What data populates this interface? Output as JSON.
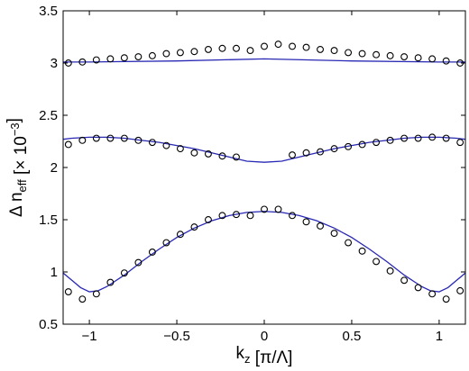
{
  "chart_data": {
    "type": "scatter",
    "title": "",
    "xlabel": "k_z [π/Λ]",
    "ylabel": "Δ n_eff [× 10^-3]",
    "xlim": [
      -1.15,
      1.15
    ],
    "ylim": [
      0.5,
      3.5
    ],
    "xticks": [
      -1,
      -0.5,
      0,
      0.5,
      1
    ],
    "xtick_labels": [
      "−1",
      "−0.5",
      "0",
      "0.5",
      "1"
    ],
    "yticks": [
      0.5,
      1,
      1.5,
      2,
      2.5,
      3,
      3.5
    ],
    "ytick_labels": [
      "0.5",
      "1",
      "1.5",
      "2",
      "2.5",
      "3",
      "3.5"
    ],
    "grid": false,
    "series": [
      {
        "kind": "markers",
        "marker": "open-circle",
        "color": "#000000",
        "x": [
          -1.12,
          -1.04,
          -0.96,
          -0.88,
          -0.8,
          -0.72,
          -0.64,
          -0.56,
          -0.48,
          -0.4,
          -0.32,
          -0.24,
          -0.16,
          -0.08,
          0,
          0.08,
          0.16,
          0.24,
          0.32,
          0.4,
          0.48,
          0.56,
          0.64,
          0.72,
          0.8,
          0.88,
          0.96,
          1.04,
          1.12
        ],
        "y": [
          3.0,
          3.01,
          3.03,
          3.04,
          3.05,
          3.06,
          3.07,
          3.09,
          3.1,
          3.11,
          3.13,
          3.14,
          3.14,
          3.12,
          3.16,
          3.18,
          3.16,
          3.15,
          3.13,
          3.12,
          3.1,
          3.09,
          3.08,
          3.07,
          3.06,
          3.05,
          3.04,
          3.02,
          3.0
        ]
      },
      {
        "kind": "markers",
        "marker": "open-circle",
        "color": "#000000",
        "x": [
          -1.12,
          -1.04,
          -0.96,
          -0.88,
          -0.8,
          -0.72,
          -0.64,
          -0.56,
          -0.48,
          -0.4,
          -0.32,
          -0.24,
          -0.16,
          0.16,
          0.24,
          0.32,
          0.4,
          0.48,
          0.56,
          0.64,
          0.72,
          0.8,
          0.88,
          0.96,
          1.04,
          1.12
        ],
        "y": [
          2.22,
          2.26,
          2.28,
          2.28,
          2.28,
          2.26,
          2.24,
          2.21,
          2.18,
          2.14,
          2.13,
          2.11,
          2.1,
          2.12,
          2.14,
          2.15,
          2.18,
          2.2,
          2.22,
          2.24,
          2.26,
          2.28,
          2.28,
          2.29,
          2.28,
          2.24
        ]
      },
      {
        "kind": "markers",
        "marker": "open-circle",
        "color": "#000000",
        "x": [
          -1.12,
          -1.04,
          -0.96,
          -0.88,
          -0.8,
          -0.72,
          -0.64,
          -0.56,
          -0.48,
          -0.4,
          -0.32,
          -0.24,
          -0.16,
          -0.08,
          0,
          0.08,
          0.16,
          0.24,
          0.32,
          0.4,
          0.48,
          0.56,
          0.64,
          0.72,
          0.8,
          0.88,
          0.96,
          1.04,
          1.12
        ],
        "y": [
          0.81,
          0.74,
          0.79,
          0.9,
          0.99,
          1.09,
          1.19,
          1.28,
          1.36,
          1.43,
          1.5,
          1.54,
          1.55,
          1.54,
          1.6,
          1.6,
          1.54,
          1.48,
          1.44,
          1.37,
          1.28,
          1.2,
          1.1,
          1.01,
          0.92,
          0.85,
          0.79,
          0.74,
          0.82
        ]
      },
      {
        "kind": "line",
        "color": "#2828b4",
        "x": [
          -1.15,
          -1.0,
          -0.5,
          0,
          0.5,
          1.0,
          1.15
        ],
        "y": [
          3.01,
          3.01,
          3.02,
          3.04,
          3.02,
          3.01,
          3.01
        ]
      },
      {
        "kind": "line",
        "color": "#2828b4",
        "x": [
          -1.15,
          -1.1,
          -1.0,
          -0.9,
          -0.8,
          -0.7,
          -0.6,
          -0.5,
          -0.4,
          -0.3,
          -0.2,
          -0.1,
          0,
          0.1,
          0.2,
          0.3,
          0.4,
          0.5,
          0.6,
          0.7,
          0.8,
          0.9,
          1.0,
          1.1,
          1.15
        ],
        "y": [
          2.27,
          2.28,
          2.29,
          2.29,
          2.28,
          2.26,
          2.24,
          2.21,
          2.18,
          2.14,
          2.1,
          2.06,
          2.05,
          2.06,
          2.1,
          2.14,
          2.18,
          2.21,
          2.24,
          2.26,
          2.28,
          2.29,
          2.29,
          2.28,
          2.27
        ]
      },
      {
        "kind": "line",
        "color": "#2828b4",
        "x": [
          -1.15,
          -1.1,
          -1.05,
          -1.0,
          -0.95,
          -0.9,
          -0.8,
          -0.7,
          -0.6,
          -0.5,
          -0.4,
          -0.3,
          -0.2,
          -0.1,
          0,
          0.1,
          0.2,
          0.3,
          0.4,
          0.5,
          0.6,
          0.7,
          0.8,
          0.9,
          0.95,
          1.0,
          1.05,
          1.1,
          1.15
        ],
        "y": [
          0.99,
          0.92,
          0.85,
          0.81,
          0.82,
          0.86,
          0.97,
          1.1,
          1.22,
          1.33,
          1.42,
          1.49,
          1.54,
          1.57,
          1.58,
          1.57,
          1.54,
          1.49,
          1.42,
          1.33,
          1.22,
          1.1,
          0.97,
          0.86,
          0.82,
          0.81,
          0.85,
          0.92,
          0.99
        ]
      }
    ]
  }
}
